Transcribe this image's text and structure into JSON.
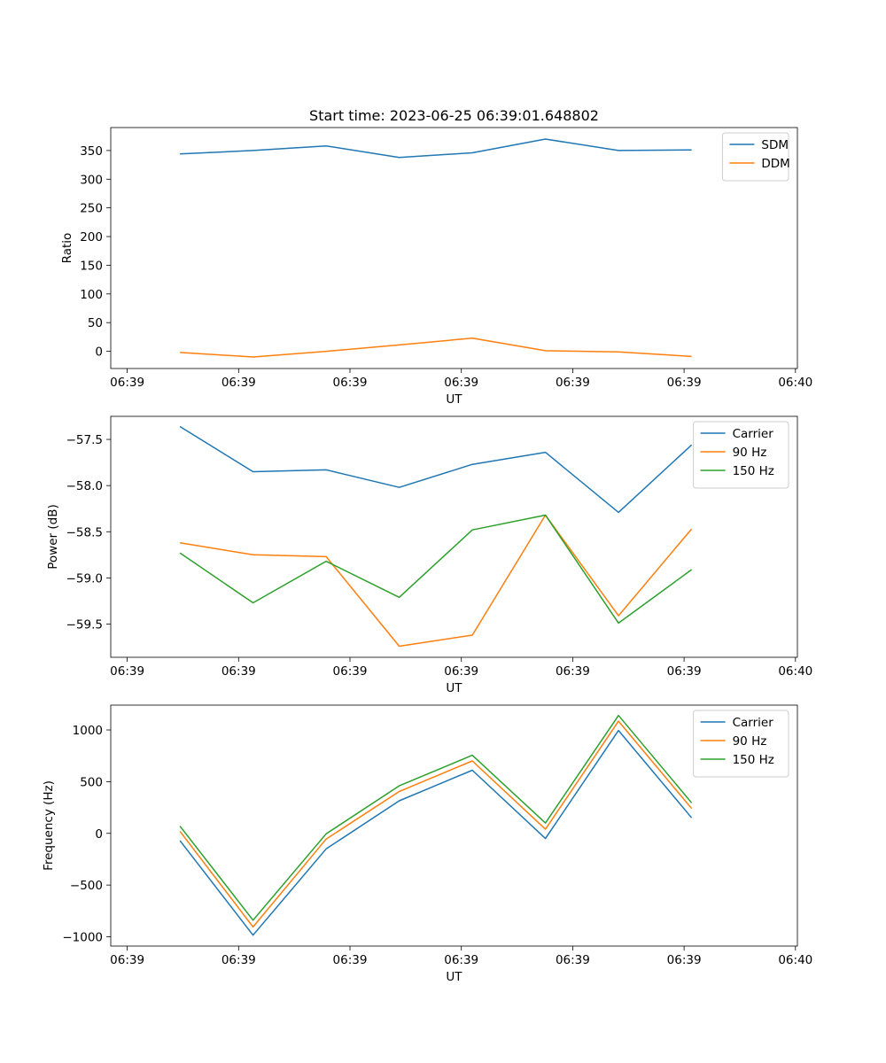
{
  "title": "Start time: 2023-06-25 06:39:01.648802",
  "colors": {
    "blue": "#1f77b4",
    "orange": "#ff7f0e",
    "green": "#2ca02c"
  },
  "chart_data": [
    {
      "type": "line",
      "title": "Start time: 2023-06-25 06:39:01.648802",
      "xlabel": "UT",
      "ylabel": "Ratio",
      "x_tick_labels": [
        "06:39",
        "06:39",
        "06:39",
        "06:39",
        "06:39",
        "06:39",
        "06:40"
      ],
      "y_ticks": [
        0,
        50,
        100,
        150,
        200,
        250,
        300,
        350
      ],
      "ylim": [
        -30,
        390
      ],
      "grid": false,
      "legend": "top-right",
      "series": [
        {
          "name": "SDM",
          "color": "#1f77b4",
          "values": [
            344,
            350,
            358,
            338,
            346,
            370,
            350,
            351
          ]
        },
        {
          "name": "DDM",
          "color": "#ff7f0e",
          "values": [
            -2,
            -10,
            0,
            11,
            23,
            1,
            -1,
            -9
          ]
        }
      ]
    },
    {
      "type": "line",
      "title": "",
      "xlabel": "UT",
      "ylabel": "Power (dB)",
      "x_tick_labels": [
        "06:39",
        "06:39",
        "06:39",
        "06:39",
        "06:39",
        "06:39",
        "06:40"
      ],
      "y_ticks": [
        -59.5,
        -59.0,
        -58.5,
        -58.0,
        -57.5
      ],
      "y_tick_labels": [
        "−59.5",
        "−59.0",
        "−58.5",
        "−58.0",
        "−57.5"
      ],
      "ylim": [
        -59.86,
        -57.25
      ],
      "grid": false,
      "legend": "top-right",
      "series": [
        {
          "name": "Carrier",
          "color": "#1f77b4",
          "values": [
            -57.36,
            -57.85,
            -57.83,
            -58.02,
            -57.77,
            -57.64,
            -58.29,
            -57.56
          ]
        },
        {
          "name": "90 Hz",
          "color": "#ff7f0e",
          "values": [
            -58.62,
            -58.75,
            -58.77,
            -59.74,
            -59.62,
            -58.32,
            -59.41,
            -58.47
          ]
        },
        {
          "name": "150 Hz",
          "color": "#2ca02c",
          "values": [
            -58.73,
            -59.27,
            -58.82,
            -59.21,
            -58.48,
            -58.32,
            -59.49,
            -58.91
          ]
        }
      ]
    },
    {
      "type": "line",
      "title": "",
      "xlabel": "UT",
      "ylabel": "Frequency (Hz)",
      "x_tick_labels": [
        "06:39",
        "06:39",
        "06:39",
        "06:39",
        "06:39",
        "06:39",
        "06:40"
      ],
      "y_ticks": [
        -1000,
        -500,
        0,
        500,
        1000
      ],
      "y_tick_labels": [
        "−1000",
        "−500",
        "0",
        "500",
        "1000"
      ],
      "ylim": [
        -1090,
        1240
      ],
      "grid": false,
      "legend": "top-right",
      "series": [
        {
          "name": "Carrier",
          "color": "#1f77b4",
          "values": [
            -70,
            -985,
            -150,
            315,
            610,
            -50,
            995,
            150
          ]
        },
        {
          "name": "90 Hz",
          "color": "#ff7f0e",
          "values": [
            20,
            -905,
            -55,
            405,
            700,
            40,
            1085,
            240
          ]
        },
        {
          "name": "150 Hz",
          "color": "#2ca02c",
          "values": [
            70,
            -840,
            -5,
            460,
            755,
            100,
            1140,
            295
          ]
        }
      ]
    }
  ]
}
